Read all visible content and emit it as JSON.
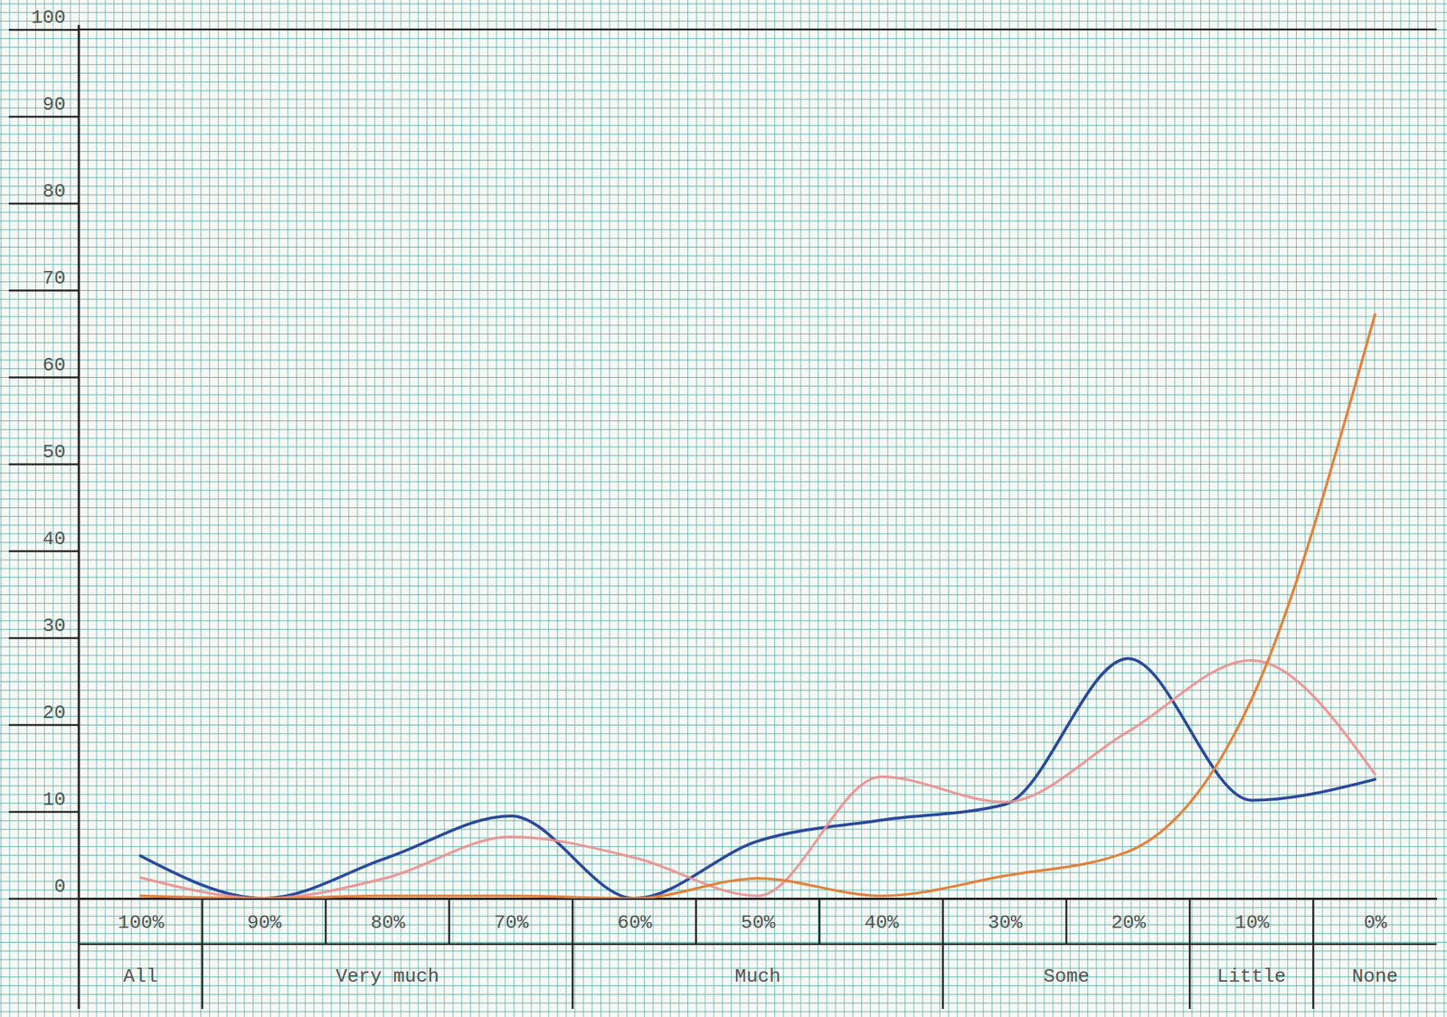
{
  "chart_data": {
    "type": "line",
    "categories": [
      "100%",
      "90%",
      "80%",
      "70%",
      "60%",
      "50%",
      "40%",
      "30%",
      "20%",
      "10%",
      "0%"
    ],
    "groups": [
      {
        "label": "All",
        "count": 1
      },
      {
        "label": "Very much",
        "count": 3
      },
      {
        "label": "Much",
        "count": 3
      },
      {
        "label": "Some",
        "count": 2
      },
      {
        "label": "Little",
        "count": 1
      },
      {
        "label": "None",
        "count": 1
      }
    ],
    "series": [
      {
        "color": "#2b4a9c",
        "values": [
          4.9,
          0,
          4.7,
          9.5,
          0,
          6.6,
          9.0,
          10.8,
          27.6,
          11.3,
          13.7
        ]
      },
      {
        "color": "#ec8f8f",
        "values": [
          2.4,
          0,
          2.4,
          7.1,
          4.7,
          0.3,
          14.0,
          11.1,
          19.2,
          27.4,
          14.3
        ]
      },
      {
        "color": "#e4813a",
        "values": [
          0.3,
          0,
          0.3,
          0.3,
          0,
          2.3,
          0.3,
          2.6,
          5.4,
          22.9,
          67.2
        ]
      }
    ],
    "ylim": [
      0,
      100
    ],
    "yticks": [
      0,
      10,
      20,
      30,
      40,
      50,
      60,
      70,
      80,
      90,
      100
    ]
  }
}
